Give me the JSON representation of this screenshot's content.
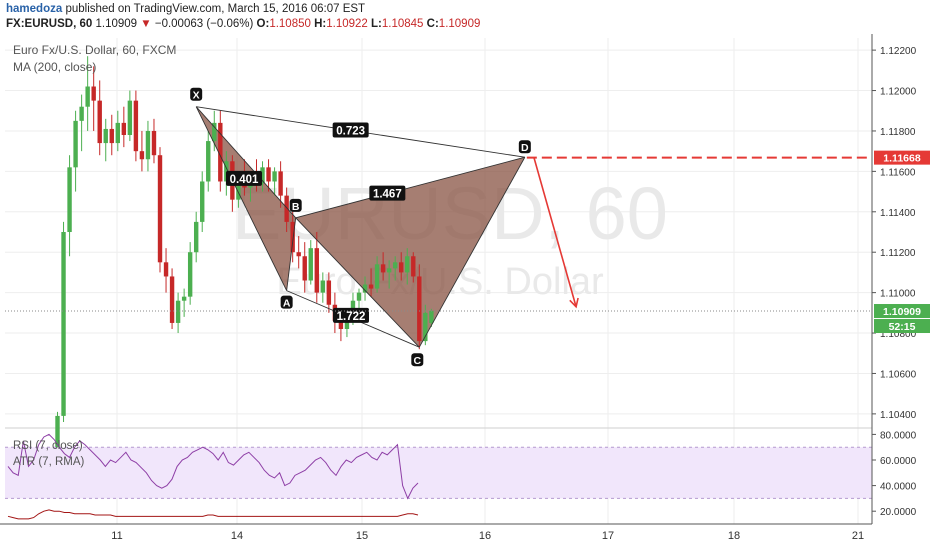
{
  "header": {
    "author": "hamedoza",
    "published_text": "published on TradingView.com, March 15, 2016 06:07 EST",
    "symbol": "FX:EURUSD, 60",
    "last": "1.10909",
    "change_arrow": "▼",
    "change": "−0.00063 (−0.06%)",
    "o_label": "O:",
    "o_value": "1.10850",
    "h_label": "H:",
    "h_value": "1.10922",
    "l_label": "L:",
    "l_value": "1.10845",
    "c_label": "C:",
    "c_value": "1.10909"
  },
  "legend": {
    "title": "Euro Fx/U.S. Dollar, 60, FXCM",
    "ma": "MA (200, close)",
    "rsi": "RSI (7, close)",
    "atr": "ATR (7, RMA)"
  },
  "watermark": {
    "symbol": "EURUSD, 60",
    "name": "Euro Fx/U.S. Dollar"
  },
  "colors": {
    "up": "#4caf50",
    "down": "#c62828",
    "pattern_fill": "#8d5a4a",
    "target": "#e53935",
    "rsi_line": "#8e3fa6",
    "atr_line": "#a31515",
    "rsi_band": "#f1e6fb"
  },
  "price_labels": {
    "target": "1.11668",
    "last": "1.10909",
    "countdown": "52:15"
  },
  "pattern_points": [
    "X",
    "A",
    "B",
    "C",
    "D"
  ],
  "ratios": [
    "0.723",
    "0.401",
    "1.467",
    "1.722"
  ],
  "chart_data": {
    "type": "candlestick",
    "symbol": "EURUSD",
    "timeframe": "60",
    "x_ticks": [
      "11",
      "14",
      "15",
      "16",
      "17",
      "18",
      "21"
    ],
    "price_axis": {
      "ticks": [
        "1.12200",
        "1.12000",
        "1.11800",
        "1.11600",
        "1.11400",
        "1.11200",
        "1.11000",
        "1.10800",
        "1.10600",
        "1.10400"
      ],
      "range": [
        1.1034,
        1.1226
      ]
    },
    "candles": [
      {
        "o": 1.102,
        "h": 1.1041,
        "l": 1.1012,
        "c": 1.1039
      },
      {
        "o": 1.1039,
        "h": 1.1135,
        "l": 1.1036,
        "c": 1.113
      },
      {
        "o": 1.113,
        "h": 1.1168,
        "l": 1.1118,
        "c": 1.1162
      },
      {
        "o": 1.1162,
        "h": 1.119,
        "l": 1.115,
        "c": 1.1185
      },
      {
        "o": 1.1185,
        "h": 1.1198,
        "l": 1.117,
        "c": 1.1192
      },
      {
        "o": 1.1192,
        "h": 1.1217,
        "l": 1.118,
        "c": 1.1202
      },
      {
        "o": 1.1202,
        "h": 1.1212,
        "l": 1.118,
        "c": 1.1195
      },
      {
        "o": 1.1195,
        "h": 1.1205,
        "l": 1.1168,
        "c": 1.1174
      },
      {
        "o": 1.1174,
        "h": 1.1186,
        "l": 1.1165,
        "c": 1.1181
      },
      {
        "o": 1.1181,
        "h": 1.1188,
        "l": 1.1168,
        "c": 1.1174
      },
      {
        "o": 1.1174,
        "h": 1.119,
        "l": 1.117,
        "c": 1.1184
      },
      {
        "o": 1.1184,
        "h": 1.1192,
        "l": 1.1172,
        "c": 1.1178
      },
      {
        "o": 1.1178,
        "h": 1.12,
        "l": 1.1175,
        "c": 1.1195
      },
      {
        "o": 1.1195,
        "h": 1.12,
        "l": 1.1165,
        "c": 1.117
      },
      {
        "o": 1.117,
        "h": 1.118,
        "l": 1.116,
        "c": 1.1166
      },
      {
        "o": 1.1166,
        "h": 1.1185,
        "l": 1.116,
        "c": 1.118
      },
      {
        "o": 1.118,
        "h": 1.1186,
        "l": 1.1164,
        "c": 1.1168
      },
      {
        "o": 1.1168,
        "h": 1.1172,
        "l": 1.111,
        "c": 1.1115
      },
      {
        "o": 1.1115,
        "h": 1.1122,
        "l": 1.11,
        "c": 1.1108
      },
      {
        "o": 1.1108,
        "h": 1.1112,
        "l": 1.1082,
        "c": 1.1085
      },
      {
        "o": 1.1085,
        "h": 1.11,
        "l": 1.108,
        "c": 1.1096
      },
      {
        "o": 1.1096,
        "h": 1.1102,
        "l": 1.1088,
        "c": 1.1098
      },
      {
        "o": 1.1098,
        "h": 1.1125,
        "l": 1.1094,
        "c": 1.112
      },
      {
        "o": 1.112,
        "h": 1.114,
        "l": 1.1115,
        "c": 1.1135
      },
      {
        "o": 1.1135,
        "h": 1.116,
        "l": 1.113,
        "c": 1.1155
      },
      {
        "o": 1.1155,
        "h": 1.118,
        "l": 1.115,
        "c": 1.1175
      },
      {
        "o": 1.1175,
        "h": 1.119,
        "l": 1.117,
        "c": 1.1184
      },
      {
        "o": 1.1184,
        "h": 1.119,
        "l": 1.115,
        "c": 1.1155
      },
      {
        "o": 1.1155,
        "h": 1.117,
        "l": 1.1148,
        "c": 1.1165
      },
      {
        "o": 1.1165,
        "h": 1.1168,
        "l": 1.114,
        "c": 1.1146
      },
      {
        "o": 1.1146,
        "h": 1.116,
        "l": 1.1142,
        "c": 1.1156
      },
      {
        "o": 1.1156,
        "h": 1.1166,
        "l": 1.1148,
        "c": 1.1152
      },
      {
        "o": 1.1152,
        "h": 1.116,
        "l": 1.1145,
        "c": 1.1158
      },
      {
        "o": 1.1158,
        "h": 1.1166,
        "l": 1.115,
        "c": 1.1154
      },
      {
        "o": 1.1154,
        "h": 1.1165,
        "l": 1.115,
        "c": 1.1162
      },
      {
        "o": 1.1162,
        "h": 1.1166,
        "l": 1.115,
        "c": 1.1155
      },
      {
        "o": 1.1155,
        "h": 1.1162,
        "l": 1.1148,
        "c": 1.116
      },
      {
        "o": 1.116,
        "h": 1.1165,
        "l": 1.1142,
        "c": 1.1148
      },
      {
        "o": 1.1148,
        "h": 1.1152,
        "l": 1.113,
        "c": 1.1135
      },
      {
        "o": 1.1135,
        "h": 1.114,
        "l": 1.1115,
        "c": 1.112
      },
      {
        "o": 1.112,
        "h": 1.1128,
        "l": 1.1112,
        "c": 1.1118
      },
      {
        "o": 1.1118,
        "h": 1.1125,
        "l": 1.11,
        "c": 1.1106
      },
      {
        "o": 1.1106,
        "h": 1.1126,
        "l": 1.1104,
        "c": 1.1122
      },
      {
        "o": 1.1122,
        "h": 1.113,
        "l": 1.1095,
        "c": 1.11
      },
      {
        "o": 1.11,
        "h": 1.111,
        "l": 1.1095,
        "c": 1.1106
      },
      {
        "o": 1.1106,
        "h": 1.111,
        "l": 1.109,
        "c": 1.1094
      },
      {
        "o": 1.1094,
        "h": 1.11,
        "l": 1.108,
        "c": 1.1086
      },
      {
        "o": 1.1086,
        "h": 1.1092,
        "l": 1.1076,
        "c": 1.1082
      },
      {
        "o": 1.1082,
        "h": 1.109,
        "l": 1.1078,
        "c": 1.1086
      },
      {
        "o": 1.1086,
        "h": 1.11,
        "l": 1.1084,
        "c": 1.1096
      },
      {
        "o": 1.1096,
        "h": 1.1102,
        "l": 1.109,
        "c": 1.11
      },
      {
        "o": 1.11,
        "h": 1.1108,
        "l": 1.1096,
        "c": 1.1104
      },
      {
        "o": 1.1104,
        "h": 1.1112,
        "l": 1.1098,
        "c": 1.1102
      },
      {
        "o": 1.1102,
        "h": 1.1118,
        "l": 1.11,
        "c": 1.1114
      },
      {
        "o": 1.1114,
        "h": 1.112,
        "l": 1.1106,
        "c": 1.111
      },
      {
        "o": 1.111,
        "h": 1.1116,
        "l": 1.1102,
        "c": 1.1112
      },
      {
        "o": 1.1112,
        "h": 1.1118,
        "l": 1.1106,
        "c": 1.1115
      },
      {
        "o": 1.1115,
        "h": 1.112,
        "l": 1.1106,
        "c": 1.111
      },
      {
        "o": 1.111,
        "h": 1.1122,
        "l": 1.1104,
        "c": 1.1118
      },
      {
        "o": 1.1118,
        "h": 1.112,
        "l": 1.1105,
        "c": 1.1108
      },
      {
        "o": 1.1108,
        "h": 1.1114,
        "l": 1.1072,
        "c": 1.1076
      },
      {
        "o": 1.1076,
        "h": 1.1094,
        "l": 1.1074,
        "c": 1.109
      },
      {
        "o": 1.1085,
        "h": 1.1092,
        "l": 1.1083,
        "c": 1.1091
      }
    ],
    "target_level": 1.11668,
    "last_price": 1.10909,
    "pattern": [
      {
        "label": "X",
        "i": 23,
        "price": 1.1192
      },
      {
        "label": "A",
        "i": 38,
        "price": 1.1101
      },
      {
        "label": "B",
        "i": 39.5,
        "price": 1.1137
      },
      {
        "label": "C",
        "i": 60,
        "price": 1.1073
      },
      {
        "label": "D",
        "i": 77.5,
        "price": 1.1167
      }
    ],
    "projection": {
      "from_i": 79,
      "from_price": 1.1167,
      "to_i": 86,
      "to_price": 1.1093
    },
    "rsi_axis": {
      "ticks": [
        "80.0000",
        "60.0000",
        "40.0000",
        "20.0000"
      ],
      "range": [
        10,
        85
      ],
      "band": [
        30,
        70
      ]
    },
    "rsi": [
      55,
      50,
      48,
      75,
      55,
      60,
      72,
      78,
      80,
      76,
      70,
      65,
      62,
      70,
      75,
      72,
      68,
      64,
      60,
      55,
      60,
      58,
      62,
      66,
      60,
      58,
      54,
      50,
      44,
      40,
      38,
      40,
      45,
      55,
      60,
      62,
      66,
      68,
      70,
      68,
      65,
      60,
      66,
      58,
      56,
      60,
      64,
      66,
      62,
      58,
      52,
      48,
      46,
      50,
      40,
      42,
      48,
      50,
      52,
      56,
      60,
      62,
      58,
      52,
      48,
      55,
      60,
      58,
      62,
      64,
      66,
      62,
      60,
      66,
      64,
      68,
      72,
      40,
      30,
      38,
      42
    ],
    "atr": [
      16,
      15,
      14,
      14,
      14,
      15,
      18,
      20,
      21,
      20,
      20,
      19,
      19,
      18,
      18,
      18,
      18,
      17,
      17,
      17,
      17,
      16,
      16,
      16,
      16,
      16,
      16,
      16,
      16,
      16,
      16,
      16,
      16,
      16,
      16,
      16,
      16,
      16,
      16,
      17,
      17,
      16,
      16,
      16,
      16,
      16,
      16,
      16,
      16,
      16,
      16,
      16,
      16,
      16,
      16,
      16,
      16,
      16,
      16,
      16,
      16,
      16,
      16,
      16,
      16,
      16,
      16,
      16,
      16,
      16,
      16,
      16,
      16,
      16,
      16,
      16,
      16,
      17,
      18,
      18,
      17
    ]
  }
}
